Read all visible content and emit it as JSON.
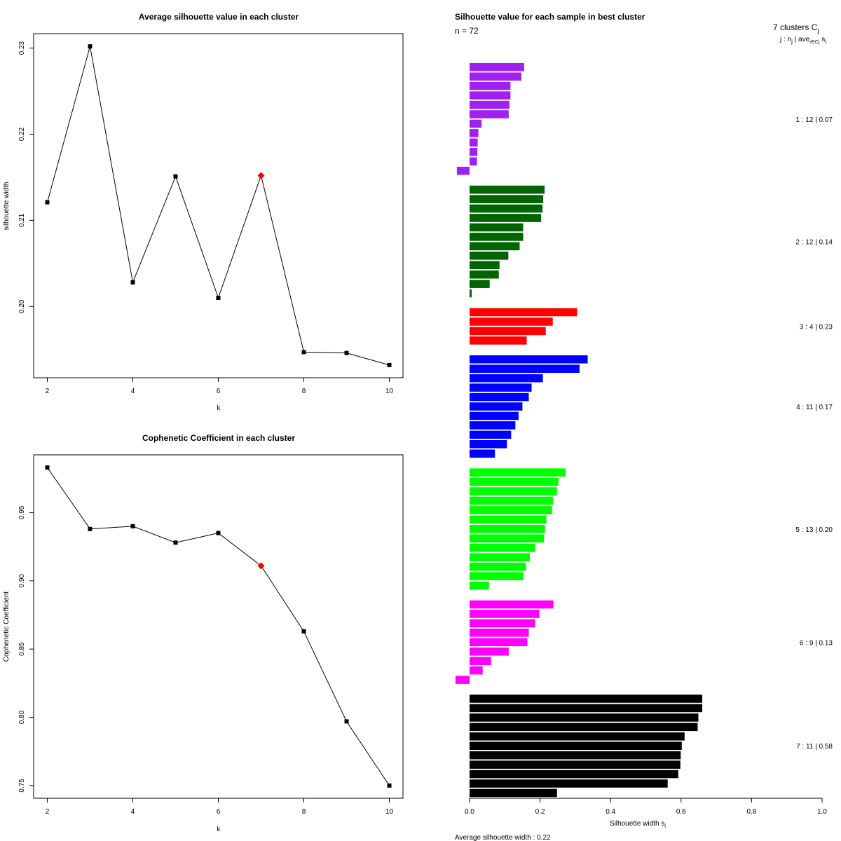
{
  "chart_data": [
    {
      "type": "line",
      "title": "Average silhouette value in each cluster",
      "xlabel": "k",
      "ylabel": "silhouette width",
      "x": [
        2,
        3,
        4,
        5,
        6,
        7,
        8,
        9,
        10
      ],
      "y": [
        0.2121,
        0.2302,
        0.2028,
        0.2151,
        0.201,
        0.2152,
        0.1947,
        0.1946,
        0.1932
      ],
      "highlight_k": 7,
      "highlight_color": "#ff0000",
      "xticks": [
        "2",
        "4",
        "6",
        "8",
        "10"
      ],
      "yticks": [
        "0.20",
        "0.21",
        "0.22",
        "0.23"
      ],
      "xlim": [
        2,
        10
      ],
      "ylim": [
        0.1932,
        0.2302
      ]
    },
    {
      "type": "line",
      "title": "Cophenetic Coefficient in each cluster",
      "xlabel": "k",
      "ylabel": "Cophenetic Coefficient",
      "x": [
        2,
        3,
        4,
        5,
        6,
        7,
        8,
        9,
        10
      ],
      "y": [
        0.983,
        0.938,
        0.94,
        0.928,
        0.935,
        0.911,
        0.863,
        0.797,
        0.75
      ],
      "highlight_k": 7,
      "highlight_color": "#ff0000",
      "xticks": [
        "2",
        "4",
        "6",
        "8",
        "10"
      ],
      "yticks": [
        "0.75",
        "0.80",
        "0.85",
        "0.90",
        "0.95"
      ],
      "xlim": [
        2,
        10
      ],
      "ylim": [
        0.75,
        0.983
      ]
    },
    {
      "type": "bar",
      "orientation": "horizontal",
      "title": "Silhouette value for each sample in best cluster",
      "n_label": "n = 72",
      "header_line1": "7 clusters  C",
      "header_sub1": "j",
      "header_line2": "j :  n",
      "header_sub2a": "j",
      "header_line2b": " | ave",
      "header_sub2b": "i∈Cj",
      "header_line2c": " s",
      "header_sub2c": "i",
      "xlabel": "Silhouette width s",
      "xlabel_sub": "i",
      "xlim": [
        0,
        1
      ],
      "xticks": [
        "0.0",
        "0.2",
        "0.4",
        "0.6",
        "0.8",
        "1.0"
      ],
      "footer": "Average silhouette width :  0.22",
      "clusters": [
        {
          "color": "#a020f0",
          "label": "1 :   12  |  0.07",
          "values": [
            0.155,
            0.147,
            0.116,
            0.116,
            0.113,
            0.111,
            0.034,
            0.025,
            0.023,
            0.022,
            0.021,
            -0.036
          ]
        },
        {
          "color": "#006400",
          "label": "2 :   12  |  0.14",
          "values": [
            0.213,
            0.209,
            0.207,
            0.203,
            0.152,
            0.152,
            0.142,
            0.11,
            0.085,
            0.083,
            0.057,
            0.006
          ]
        },
        {
          "color": "#ff0000",
          "label": "3 :   4  |  0.23",
          "values": [
            0.305,
            0.236,
            0.216,
            0.162
          ]
        },
        {
          "color": "#0000ff",
          "label": "4 :   11  |  0.17",
          "values": [
            0.335,
            0.312,
            0.208,
            0.176,
            0.168,
            0.15,
            0.139,
            0.13,
            0.118,
            0.106,
            0.072
          ]
        },
        {
          "color": "#00ff00",
          "label": "5 :   13  |  0.20",
          "values": [
            0.272,
            0.252,
            0.248,
            0.237,
            0.234,
            0.218,
            0.214,
            0.211,
            0.186,
            0.171,
            0.16,
            0.152,
            0.055
          ]
        },
        {
          "color": "#ff00ff",
          "label": "6 :   9  |  0.13",
          "values": [
            0.238,
            0.198,
            0.186,
            0.168,
            0.164,
            0.111,
            0.061,
            0.037,
            -0.04
          ]
        },
        {
          "color": "#000000",
          "label": "7 :   11  |  0.58",
          "values": [
            0.66,
            0.66,
            0.649,
            0.647,
            0.61,
            0.602,
            0.599,
            0.598,
            0.592,
            0.562,
            0.248
          ]
        }
      ]
    }
  ]
}
